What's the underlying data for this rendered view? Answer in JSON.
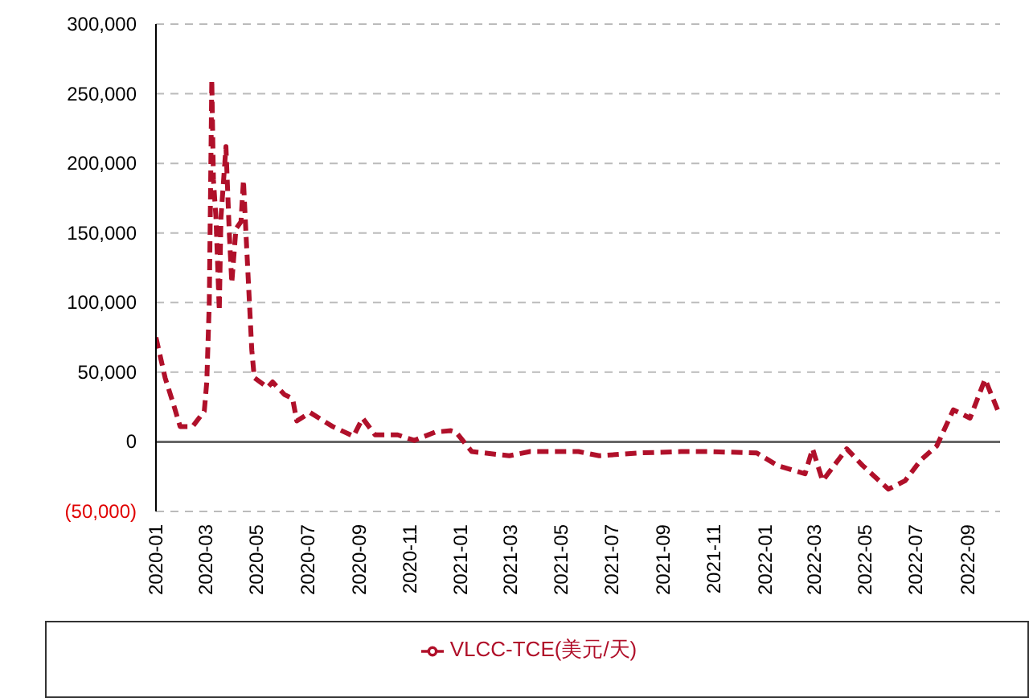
{
  "chart_data": {
    "type": "line",
    "x": [
      "2020-01-01",
      "2020-01-12",
      "2020-01-22",
      "2020-01-30",
      "2020-02-14",
      "2020-02-28",
      "2020-03-02",
      "2020-03-05",
      "2020-03-08",
      "2020-03-10",
      "2020-03-13",
      "2020-03-17",
      "2020-03-19",
      "2020-03-25",
      "2020-03-29",
      "2020-04-01",
      "2020-04-06",
      "2020-04-12",
      "2020-04-15",
      "2020-04-18",
      "2020-04-25",
      "2020-04-28",
      "2020-05-14",
      "2020-05-20",
      "2020-06-03",
      "2020-06-13",
      "2020-06-18",
      "2020-07-04",
      "2020-07-31",
      "2020-08-25",
      "2020-09-05",
      "2020-09-20",
      "2020-10-17",
      "2020-11-06",
      "2020-12-01",
      "2020-12-20",
      "2020-12-26",
      "2021-01-14",
      "2021-02-28",
      "2021-03-25",
      "2021-05-22",
      "2021-06-16",
      "2021-08-02",
      "2021-09-22",
      "2021-10-25",
      "2021-12-22",
      "2022-01-16",
      "2022-02-18",
      "2022-02-27",
      "2022-03-11",
      "2022-04-09",
      "2022-04-28",
      "2022-05-29",
      "2022-06-18",
      "2022-07-07",
      "2022-07-26",
      "2022-08-15",
      "2022-09-04",
      "2022-09-22",
      "2022-10-07"
    ],
    "series": [
      {
        "name": "VLCC-TCE(美元/天)",
        "color": "#b0102a",
        "values": [
          75000,
          46000,
          27000,
          11000,
          11000,
          22000,
          43000,
          100000,
          260000,
          188000,
          161000,
          94000,
          161000,
          212000,
          150000,
          114000,
          153000,
          158000,
          188000,
          150000,
          66000,
          46000,
          39000,
          43000,
          34000,
          31000,
          15000,
          21000,
          11000,
          4000,
          17000,
          5000,
          5000,
          1000,
          7000,
          8000,
          7000,
          -7000,
          -10000,
          -7000,
          -7000,
          -10000,
          -8000,
          -7000,
          -7000,
          -8000,
          -17000,
          -23000,
          -5000,
          -28000,
          -5000,
          -17000,
          -34000,
          -28000,
          -13000,
          -3000,
          23000,
          17000,
          45000,
          23000
        ]
      }
    ],
    "xlim": [
      "2020-01-01",
      "2022-10-10"
    ],
    "xticks": [
      "2020-01",
      "2020-03",
      "2020-05",
      "2020-07",
      "2020-09",
      "2020-11",
      "2021-01",
      "2021-03",
      "2021-05",
      "2021-07",
      "2021-09",
      "2021-11",
      "2022-01",
      "2022-03",
      "2022-05",
      "2022-07",
      "2022-09"
    ],
    "ylim": [
      -50000,
      300000
    ],
    "yticks": [
      {
        "value": -50000,
        "label": "(50,000)"
      },
      {
        "value": 0,
        "label": "0"
      },
      {
        "value": 50000,
        "label": "50,000"
      },
      {
        "value": 100000,
        "label": "100,000"
      },
      {
        "value": 150000,
        "label": "150,000"
      },
      {
        "value": 200000,
        "label": "200,000"
      },
      {
        "value": 250000,
        "label": "250,000"
      },
      {
        "value": 300000,
        "label": "300,000"
      }
    ],
    "grid": "y",
    "legend": "bottom",
    "line_style": "dashed",
    "marker": "none"
  }
}
